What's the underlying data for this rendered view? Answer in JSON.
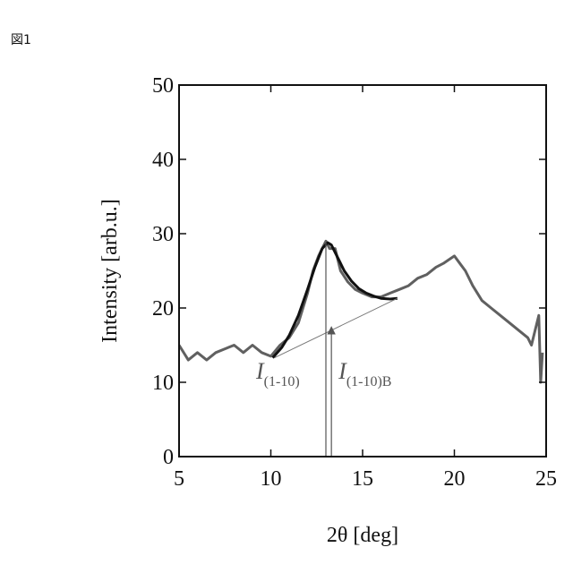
{
  "figure_label": "図1",
  "chart_data": {
    "type": "line",
    "title": "",
    "xlabel": "2θ [deg]",
    "ylabel": "Intensity [arb.u.]",
    "xlim": [
      5,
      25
    ],
    "ylim": [
      0,
      50
    ],
    "xticks": [
      5,
      10,
      15,
      20,
      25
    ],
    "yticks": [
      0,
      10,
      20,
      30,
      40,
      50
    ],
    "grid": false,
    "series": [
      {
        "color": "#606060",
        "x": [
          5.0,
          5.5,
          6.0,
          6.5,
          7.0,
          7.5,
          8.0,
          8.5,
          9.0,
          9.5,
          10.0,
          10.5,
          11.0,
          11.5,
          12.0,
          12.3,
          12.6,
          12.8,
          13.0,
          13.2,
          13.5,
          13.8,
          14.2,
          14.6,
          15.0,
          15.5,
          16.0,
          16.5,
          17.0,
          17.5,
          18.0,
          18.5,
          19.0,
          19.4,
          19.7,
          20.0,
          20.3,
          20.6,
          21.0,
          21.5,
          22.0,
          22.5,
          23.0,
          23.5,
          24.0,
          24.2,
          24.4,
          24.6,
          24.7,
          24.8
        ],
        "y": [
          15,
          13,
          14,
          13,
          14,
          14.5,
          15,
          14,
          15,
          14,
          13.5,
          15,
          16,
          18,
          22,
          25,
          27,
          28,
          29,
          28,
          28,
          25,
          23.5,
          22.5,
          22,
          21.5,
          21.5,
          22,
          22.5,
          23,
          24,
          24.5,
          25.5,
          26,
          26.5,
          27,
          26,
          25,
          23,
          21,
          20,
          19,
          18,
          17,
          16,
          15,
          17,
          19,
          10,
          14
        ]
      },
      {
        "color": "#111111",
        "x": [
          10.1,
          10.6,
          11.0,
          11.5,
          12.0,
          12.4,
          12.8,
          13.1,
          13.3,
          13.6,
          14.0,
          14.4,
          14.8,
          15.2,
          15.6,
          16.0,
          16.5,
          16.9
        ],
        "y": [
          13.3,
          14.7,
          16.3,
          19.0,
          22.5,
          25.5,
          28.0,
          28.8,
          28.5,
          27.0,
          25.0,
          23.6,
          22.6,
          22.0,
          21.6,
          21.3,
          21.2,
          21.3
        ]
      },
      {
        "color": "#777777",
        "x": [
          10.2,
          16.9
        ],
        "y": [
          13.3,
          21.3
        ]
      }
    ],
    "annotations": [
      {
        "text": "I",
        "sub": "(1-10)",
        "x": 13.0,
        "y_from": 0,
        "y_to": 28.8
      },
      {
        "text": "I",
        "sub": "(1-10)B",
        "x": 13.3,
        "y_from": 0,
        "y_to": 17.0
      }
    ]
  }
}
